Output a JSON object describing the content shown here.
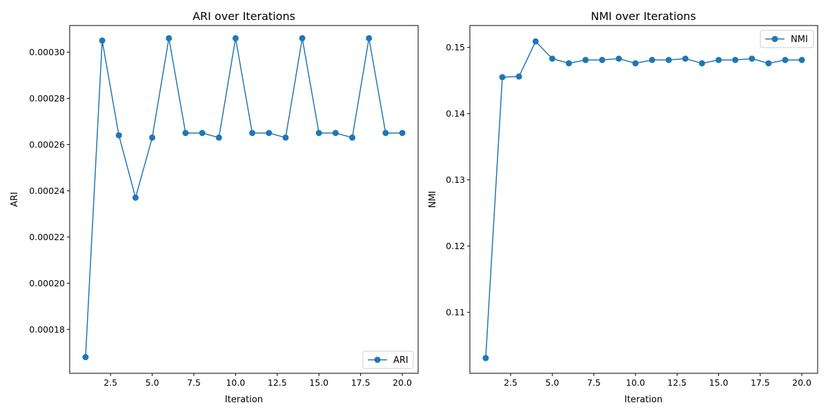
{
  "chart_data": [
    {
      "type": "line",
      "title": "ARI over Iterations",
      "xlabel": "Iteration",
      "ylabel": "ARI",
      "xlim": [
        0.05,
        20.95
      ],
      "ylim": [
        0.000161,
        0.0003115
      ],
      "xticks": [
        2.5,
        5.0,
        7.5,
        10.0,
        12.5,
        15.0,
        17.5,
        20.0
      ],
      "xtick_labels": [
        "2.5",
        "5.0",
        "7.5",
        "10.0",
        "12.5",
        "15.0",
        "17.5",
        "20.0"
      ],
      "yticks": [
        0.00018,
        0.0002,
        0.00022,
        0.00024,
        0.00026,
        0.00028,
        0.0003
      ],
      "ytick_labels": [
        "0.00018",
        "0.00020",
        "0.00022",
        "0.00024",
        "0.00026",
        "0.00028",
        "0.00030"
      ],
      "legend_position": "lower-right",
      "grid": false,
      "series": [
        {
          "name": "ARI",
          "color": "#1f77b4",
          "marker": "circle",
          "x": [
            1,
            2,
            3,
            4,
            5,
            6,
            7,
            8,
            9,
            10,
            11,
            12,
            13,
            14,
            15,
            16,
            17,
            18,
            19,
            20
          ],
          "values": [
            0.000168,
            0.000305,
            0.000264,
            0.000237,
            0.000263,
            0.000306,
            0.000265,
            0.000265,
            0.000263,
            0.000306,
            0.000265,
            0.000265,
            0.000263,
            0.000306,
            0.000265,
            0.000265,
            0.000263,
            0.000306,
            0.000265,
            0.000265
          ]
        }
      ]
    },
    {
      "type": "line",
      "title": "NMI over Iterations",
      "xlabel": "Iteration",
      "ylabel": "NMI",
      "xlim": [
        0.05,
        20.95
      ],
      "ylim": [
        0.1008,
        0.1533
      ],
      "xticks": [
        2.5,
        5.0,
        7.5,
        10.0,
        12.5,
        15.0,
        17.5,
        20.0
      ],
      "xtick_labels": [
        "2.5",
        "5.0",
        "7.5",
        "10.0",
        "12.5",
        "15.0",
        "17.5",
        "20.0"
      ],
      "yticks": [
        0.11,
        0.12,
        0.13,
        0.14,
        0.15
      ],
      "ytick_labels": [
        "0.11",
        "0.12",
        "0.13",
        "0.14",
        "0.15"
      ],
      "legend_position": "upper-right",
      "grid": false,
      "series": [
        {
          "name": "NMI",
          "color": "#1f77b4",
          "marker": "circle",
          "x": [
            1,
            2,
            3,
            4,
            5,
            6,
            7,
            8,
            9,
            10,
            11,
            12,
            13,
            14,
            15,
            16,
            17,
            18,
            19,
            20
          ],
          "values": [
            0.1031,
            0.1455,
            0.1456,
            0.1509,
            0.1483,
            0.1476,
            0.1481,
            0.1481,
            0.1483,
            0.1476,
            0.1481,
            0.1481,
            0.1483,
            0.1476,
            0.1481,
            0.1481,
            0.1483,
            0.1476,
            0.1481,
            0.1481
          ]
        }
      ]
    }
  ]
}
